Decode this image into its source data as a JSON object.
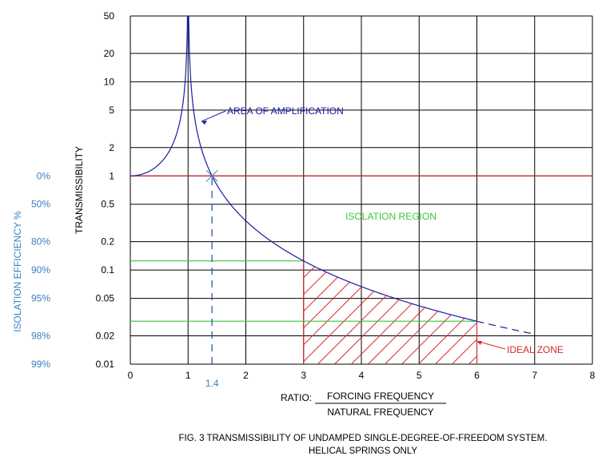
{
  "chart_data": {
    "type": "line",
    "title": "FIG. 3  TRANSMISSIBILITY OF UNDAMPED SINGLE-DEGREE-OF-FREEDOM SYSTEM.",
    "subtitle": "HELICAL SPRINGS ONLY",
    "ylabel": "TRANSMISSIBILITY",
    "y2label": "ISOLATION EFFICIENCY %",
    "xlabel_prefix": "RATIO:",
    "xlabel_numerator": "FORCING FREQUENCY",
    "xlabel_denominator": "NATURAL FREQUENCY",
    "xlim": [
      0,
      8
    ],
    "ylim": [
      0.01,
      50
    ],
    "yscale": "log",
    "grid": true,
    "x_ticks": [
      "0",
      "1",
      "2",
      "3",
      "4",
      "5",
      "6",
      "7",
      "8"
    ],
    "y_ticks": [
      {
        "value": 50,
        "label": "50"
      },
      {
        "value": 20,
        "label": "20"
      },
      {
        "value": 10,
        "label": "10"
      },
      {
        "value": 5,
        "label": "5"
      },
      {
        "value": 2,
        "label": "2"
      },
      {
        "value": 1,
        "label": "1"
      },
      {
        "value": 0.5,
        "label": "0.5"
      },
      {
        "value": 0.2,
        "label": "0.2"
      },
      {
        "value": 0.1,
        "label": "0.1"
      },
      {
        "value": 0.05,
        "label": "0.05"
      },
      {
        "value": 0.02,
        "label": "0.02"
      },
      {
        "value": 0.01,
        "label": "0.01"
      }
    ],
    "efficiency_ticks": [
      {
        "value": 1,
        "label": "0%"
      },
      {
        "value": 0.5,
        "label": "50%"
      },
      {
        "value": 0.2,
        "label": "80%"
      },
      {
        "value": 0.1,
        "label": "90%"
      },
      {
        "value": 0.05,
        "label": "95%"
      },
      {
        "value": 0.02,
        "label": "98%"
      },
      {
        "value": 0.01,
        "label": "99%"
      }
    ],
    "series": [
      {
        "formula": "T = 1 / |1 - r^2|",
        "x_range": [
          0,
          6
        ],
        "style": "solid",
        "color": "#1a1aa6"
      },
      {
        "formula": "T = 1 / |1 - r^2|",
        "x_range": [
          6,
          7
        ],
        "style": "dashed",
        "color": "#1a1aa6"
      }
    ],
    "reference_lines": [
      {
        "orientation": "horizontal",
        "y": 1,
        "x_from": 0,
        "x_to": 8,
        "color": "#d42a2a",
        "style": "solid"
      },
      {
        "orientation": "horizontal",
        "y": 0.125,
        "x_from": 0,
        "x_to": 3,
        "color": "#3ec43e",
        "style": "solid"
      },
      {
        "orientation": "horizontal",
        "y": 0.0286,
        "x_from": 0,
        "x_to": 6,
        "color": "#3ec43e",
        "style": "solid"
      },
      {
        "orientation": "vertical",
        "x": 1.414,
        "y_from": 0.01,
        "y_to": 1,
        "color": "#1a4fa6",
        "style": "dashed"
      }
    ],
    "crossover": {
      "x": 1.414,
      "y": 1,
      "label": "1.4",
      "color": "#3a7fc2"
    },
    "ideal_zone": {
      "x_from": 3,
      "x_to": 6,
      "y_min": 0.01,
      "color": "#d42a2a",
      "label": "IDEAL ZONE"
    },
    "annotations": [
      {
        "text": "AREA OF AMPLIFICATION",
        "color": "#1a1aa6"
      },
      {
        "text": "ISOLATION REGION",
        "color": "#3ec43e"
      }
    ],
    "colors": {
      "grid": "#000000",
      "curve": "#1a1aa6",
      "amplification_label": "#1a1aa6",
      "isolation_label": "#3ec43e",
      "efficiency_labels": "#3a7fc2",
      "ideal_zone": "#d42a2a"
    }
  }
}
